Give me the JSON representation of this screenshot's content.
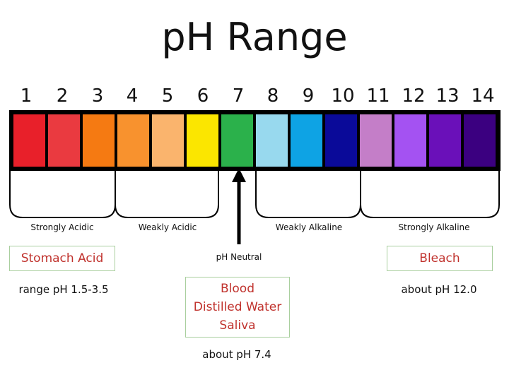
{
  "title": "pH Range",
  "scale": [
    {
      "ph": "1",
      "color": "#e8202a"
    },
    {
      "ph": "2",
      "color": "#ea3a40"
    },
    {
      "ph": "3",
      "color": "#f57a12"
    },
    {
      "ph": "4",
      "color": "#f8922e"
    },
    {
      "ph": "5",
      "color": "#fab46d"
    },
    {
      "ph": "6",
      "color": "#fbe600"
    },
    {
      "ph": "7",
      "color": "#2bb14b"
    },
    {
      "ph": "8",
      "color": "#98d9ee"
    },
    {
      "ph": "9",
      "color": "#0ea3e4"
    },
    {
      "ph": "10",
      "color": "#0a0a99"
    },
    {
      "ph": "11",
      "color": "#c47ec8"
    },
    {
      "ph": "12",
      "color": "#a452f2"
    },
    {
      "ph": "13",
      "color": "#6a10b9"
    },
    {
      "ph": "14",
      "color": "#3b0080"
    }
  ],
  "categories": {
    "strongly_acidic": "Strongly Acidic",
    "weakly_acidic": "Weakly Acidic",
    "weakly_alkaline": "Weakly Alkaline",
    "strongly_alkaline": "Strongly Alkaline"
  },
  "neutral_label": "pH Neutral",
  "examples": {
    "stomach_acid": {
      "name": "Stomach Acid",
      "note": "range pH 1.5-3.5"
    },
    "neutral_items": [
      "Blood",
      "Distilled Water",
      "Saliva"
    ],
    "neutral_note": "about pH 7.4",
    "bleach": {
      "name": "Bleach",
      "note": "about pH 12.0"
    }
  },
  "colors": {
    "example_text": "#c0322d",
    "example_border": "#a9cf9e"
  }
}
